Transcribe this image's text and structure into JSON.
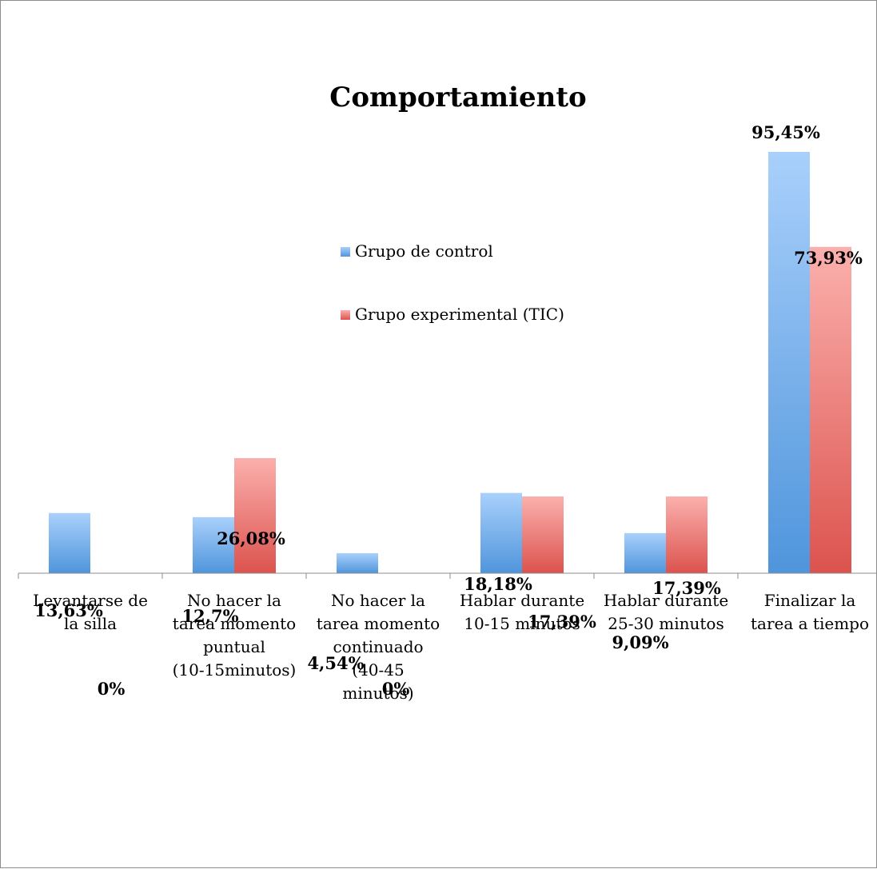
{
  "chart_data": {
    "type": "bar",
    "title": "Comportamiento",
    "categories": [
      [
        "Levantarse de",
        "la silla"
      ],
      [
        "No hacer la",
        "tarea momento",
        "puntual",
        "(10-15minutos)"
      ],
      [
        "No hacer la",
        "tarea momento",
        "continuado",
        "(40-45",
        "minutos)"
      ],
      [
        "Hablar durante",
        "10-15 minutos"
      ],
      [
        "Hablar durante",
        "25-30 minutos"
      ],
      [
        "Finalizar la",
        "tarea a tiempo"
      ]
    ],
    "series": [
      {
        "name": "Grupo de control",
        "values": [
          13.63,
          12.7,
          4.54,
          18.18,
          9.09,
          95.45
        ],
        "labels": [
          "13,63%",
          "12,7%",
          "4,54%",
          "18,18%",
          "9,09%",
          "95,45%"
        ],
        "color_top": "#a9d0fb",
        "color_bottom": "#4f95dc"
      },
      {
        "name": "Grupo experimental (TIC)",
        "values": [
          0,
          26.08,
          0,
          17.39,
          17.39,
          73.93
        ],
        "labels": [
          "0%",
          "26,08%",
          "0%",
          "17,39%",
          "17,39%",
          "73,93%"
        ],
        "color_top": "#fbb0ad",
        "color_bottom": "#dc534e"
      }
    ],
    "ylim": [
      0,
      100
    ],
    "grid": false,
    "legend_position": "center"
  }
}
